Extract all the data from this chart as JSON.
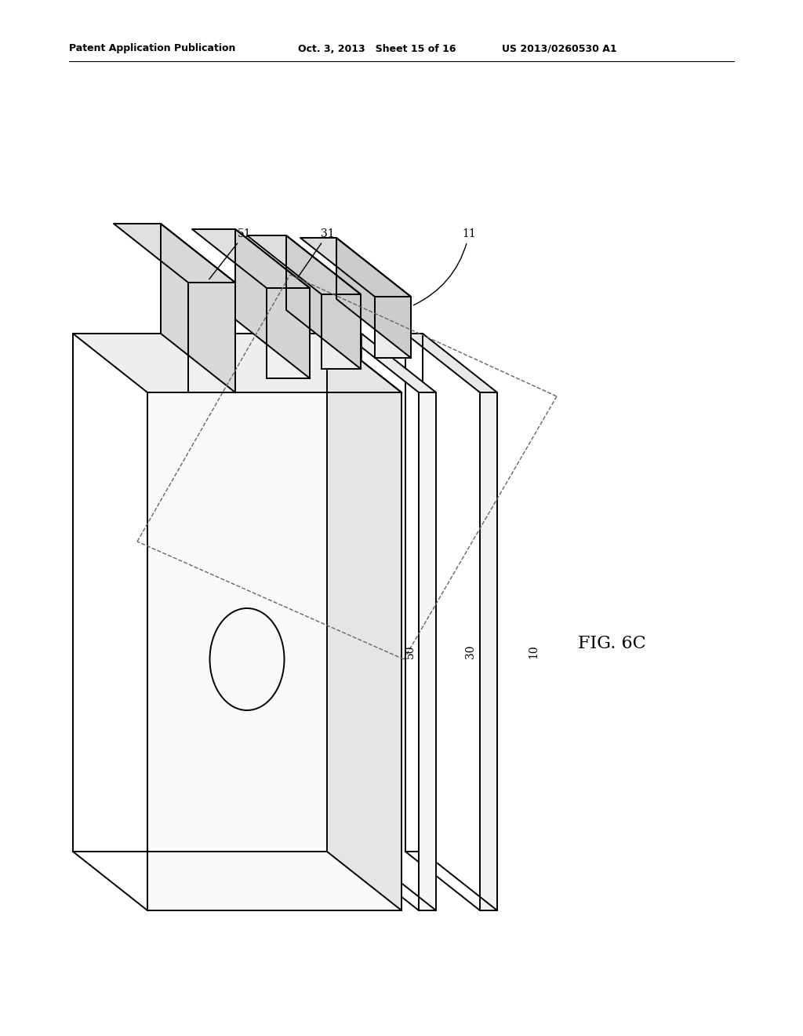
{
  "bg_color": "#ffffff",
  "line_color": "#000000",
  "header_text_left": "Patent Application Publication",
  "header_text_mid": "Oct. 3, 2013   Sheet 15 of 16",
  "header_text_right": "US 2013/0260530 A1",
  "fig_label": "FIG. 6C"
}
